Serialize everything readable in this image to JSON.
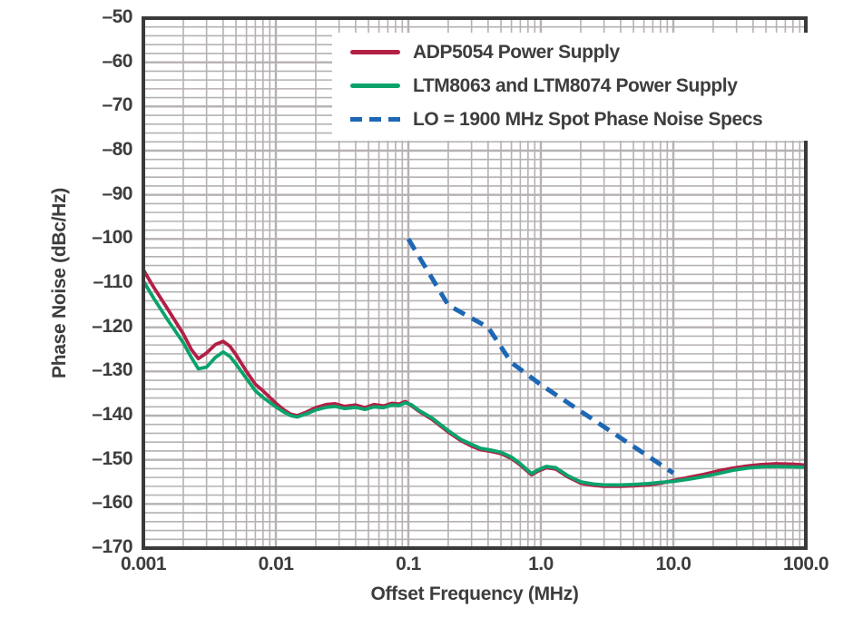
{
  "colors": {
    "grid": "#b6b1b2",
    "border": "#3a3a3a",
    "text": "#3d3d3d",
    "background": "#ffffff",
    "adp5054_red": "#b22046",
    "ltm_green": "#0ba36c",
    "lo_spec_blue": "#1d67b5"
  },
  "chart_data": {
    "type": "line",
    "title": "",
    "xlabel": "Offset Frequency (MHz)",
    "ylabel": "Phase Noise (dBc/Hz)",
    "xscale": "log",
    "xlim": [
      0.001,
      100
    ],
    "ylim": [
      -170,
      -50
    ],
    "grid": {
      "on": true,
      "h_minor_step_db": 2,
      "h_major_step_db": 10,
      "v_minor": "log-decades"
    },
    "legend_position": "top-inside",
    "x_ticks": [
      {
        "v": 0.001,
        "label": "0.001"
      },
      {
        "v": 0.01,
        "label": "0.01"
      },
      {
        "v": 0.1,
        "label": "0.1"
      },
      {
        "v": 1,
        "label": "1.0"
      },
      {
        "v": 10,
        "label": "10.0"
      },
      {
        "v": 100,
        "label": "100.0"
      }
    ],
    "y_ticks": [
      {
        "v": -50,
        "label": "–50"
      },
      {
        "v": -60,
        "label": "–60"
      },
      {
        "v": -70,
        "label": "–70"
      },
      {
        "v": -80,
        "label": "–80"
      },
      {
        "v": -90,
        "label": "–90"
      },
      {
        "v": -100,
        "label": "–100"
      },
      {
        "v": -110,
        "label": "–110"
      },
      {
        "v": -120,
        "label": "–120"
      },
      {
        "v": -130,
        "label": "–130"
      },
      {
        "v": -140,
        "label": "–140"
      },
      {
        "v": -150,
        "label": "–150"
      },
      {
        "v": -160,
        "label": "–160"
      },
      {
        "v": -170,
        "label": "–170"
      }
    ],
    "series": [
      {
        "id": "adp5054",
        "name": "ADP5054 Power Supply",
        "color": "#b22046",
        "style": "solid",
        "x": [
          0.001,
          0.0012,
          0.0015,
          0.002,
          0.0023,
          0.0026,
          0.003,
          0.0035,
          0.004,
          0.0045,
          0.005,
          0.006,
          0.007,
          0.008,
          0.01,
          0.0115,
          0.013,
          0.0145,
          0.017,
          0.02,
          0.024,
          0.028,
          0.033,
          0.04,
          0.047,
          0.055,
          0.065,
          0.075,
          0.085,
          0.095,
          0.105,
          0.12,
          0.15,
          0.2,
          0.25,
          0.3,
          0.35,
          0.42,
          0.5,
          0.6,
          0.7,
          0.85,
          0.95,
          1.1,
          1.3,
          1.6,
          2,
          2.5,
          3,
          4,
          5,
          6.5,
          8,
          10,
          13,
          17,
          22,
          28,
          36,
          45,
          60,
          80,
          100
        ],
        "y": [
          -107,
          -111,
          -115.5,
          -121.5,
          -125,
          -127.1,
          -125.8,
          -123.9,
          -123.2,
          -124.3,
          -126.2,
          -130,
          -132.9,
          -134.4,
          -137.2,
          -138.7,
          -139.7,
          -140,
          -139.2,
          -138.2,
          -137.5,
          -137.3,
          -137.9,
          -137.6,
          -138.2,
          -137.5,
          -137.8,
          -137.2,
          -137.4,
          -136.8,
          -137.7,
          -139,
          -140.8,
          -143.7,
          -145.7,
          -146.9,
          -147.7,
          -148.1,
          -148.6,
          -149.7,
          -151.2,
          -153.4,
          -152.6,
          -151.8,
          -152.1,
          -153.9,
          -155.3,
          -155.8,
          -156,
          -156,
          -155.9,
          -155.7,
          -155.3,
          -154.7,
          -154,
          -153.3,
          -152.5,
          -151.9,
          -151.4,
          -151.1,
          -150.9,
          -151,
          -151.2
        ]
      },
      {
        "id": "ltm8063-ltm8074",
        "name": "LTM8063 and LTM8074 Power Supply",
        "color": "#0ba36c",
        "style": "solid",
        "x": [
          0.001,
          0.0012,
          0.0015,
          0.002,
          0.0023,
          0.0026,
          0.003,
          0.0035,
          0.004,
          0.0045,
          0.005,
          0.006,
          0.007,
          0.008,
          0.01,
          0.0115,
          0.013,
          0.0145,
          0.017,
          0.02,
          0.024,
          0.028,
          0.033,
          0.04,
          0.047,
          0.055,
          0.065,
          0.075,
          0.085,
          0.095,
          0.105,
          0.12,
          0.15,
          0.2,
          0.25,
          0.3,
          0.35,
          0.42,
          0.5,
          0.6,
          0.7,
          0.85,
          0.95,
          1.1,
          1.3,
          1.6,
          2,
          2.5,
          3,
          4,
          5,
          6.5,
          8,
          10,
          13,
          17,
          22,
          28,
          36,
          45,
          60,
          80,
          100
        ],
        "y": [
          -109.5,
          -113.5,
          -118,
          -123.5,
          -126.8,
          -129.4,
          -129,
          -126.8,
          -125.6,
          -126.6,
          -128.3,
          -131.6,
          -134.4,
          -135.9,
          -138,
          -139.2,
          -140,
          -140.3,
          -139.6,
          -138.7,
          -138.1,
          -137.9,
          -138.4,
          -138.1,
          -138.6,
          -138,
          -138.2,
          -137.6,
          -137.7,
          -137.1,
          -137.5,
          -138.8,
          -140.5,
          -143.4,
          -145.4,
          -146.5,
          -147.4,
          -147.8,
          -148.3,
          -149.4,
          -150.9,
          -153.1,
          -152.3,
          -151.5,
          -151.8,
          -153.6,
          -155,
          -155.5,
          -155.7,
          -155.7,
          -155.6,
          -155.4,
          -155.1,
          -154.9,
          -154.4,
          -153.8,
          -153.1,
          -152.4,
          -151.9,
          -151.6,
          -151.5,
          -151.6,
          -151.7
        ]
      },
      {
        "id": "lo-spec",
        "name": "LO = 1900 MHz Spot Phase Noise Specs",
        "color": "#1d67b5",
        "style": "dashed",
        "x": [
          0.1,
          0.2,
          0.4,
          0.6,
          1.0,
          10
        ],
        "y": [
          -100,
          -115,
          -120,
          -128,
          -133,
          -153
        ]
      }
    ]
  }
}
